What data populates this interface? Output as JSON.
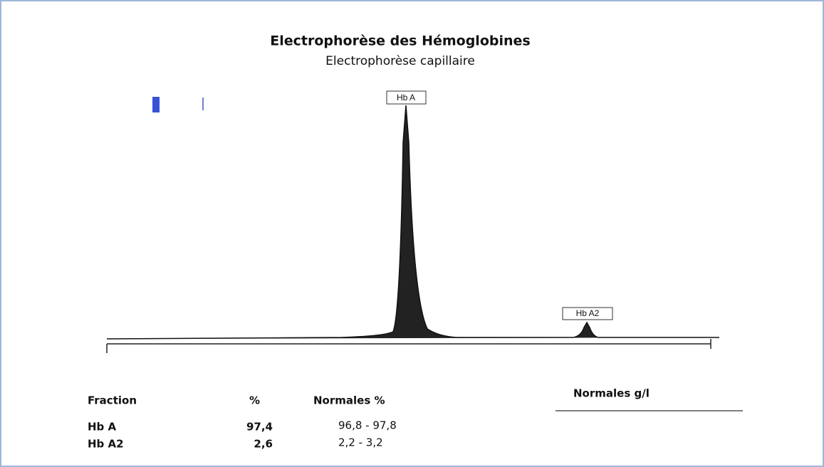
{
  "header": {
    "title": "Electrophorèse des Hémoglobines",
    "subtitle": "Electrophorèse capillaire"
  },
  "peaks": [
    {
      "label": "Hb A"
    },
    {
      "label": "Hb A2"
    }
  ],
  "table": {
    "columns": [
      "Fraction",
      "%",
      "Normales %",
      "Normales g/l"
    ],
    "rows": [
      [
        "Hb A",
        "97,4",
        "96,8 - 97,8"
      ],
      [
        "Hb A2",
        "2,6",
        "2,2 -  3,2"
      ]
    ]
  }
}
